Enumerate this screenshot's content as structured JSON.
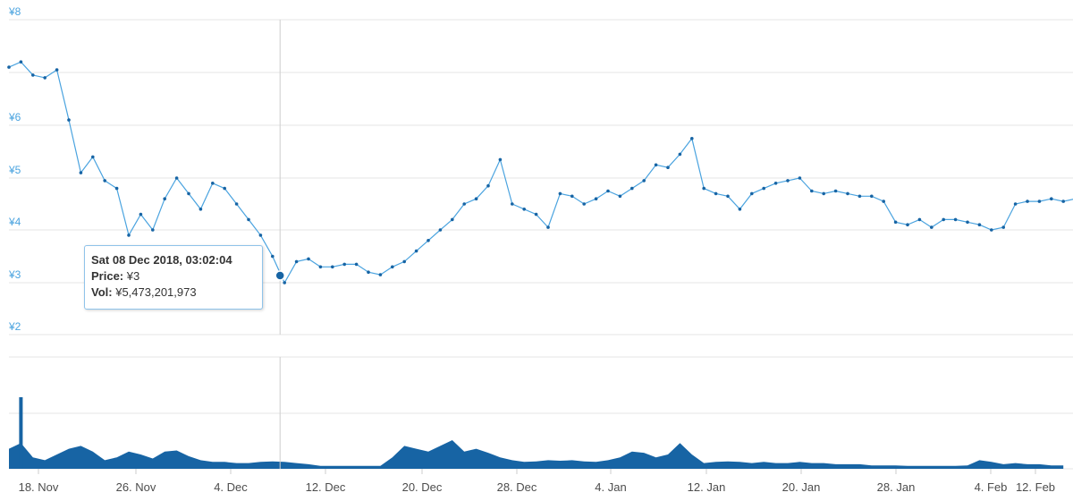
{
  "chart_data": {
    "type": "line",
    "price_axis": {
      "ticks": [
        "¥2",
        "¥3",
        "¥4",
        "¥5",
        "¥6",
        "¥8"
      ],
      "tick_values": [
        2,
        3,
        4,
        5,
        6,
        8
      ]
    },
    "x_ticks": [
      "18. Nov",
      "26. Nov",
      "4. Dec",
      "12. Dec",
      "20. Dec",
      "28. Dec",
      "4. Jan",
      "12. Jan",
      "20. Jan",
      "28. Jan",
      "4. Feb",
      "12. Feb"
    ],
    "price_series": {
      "color": "#1764a4",
      "points": [
        [
          "15 Nov",
          7.1
        ],
        [
          "16 Nov",
          7.2
        ],
        [
          "17 Nov",
          6.95
        ],
        [
          "18 Nov",
          6.9
        ],
        [
          "19 Nov",
          7.05
        ],
        [
          "20 Nov",
          6.1
        ],
        [
          "21 Nov",
          5.1
        ],
        [
          "22 Nov",
          5.4
        ],
        [
          "23 Nov",
          4.95
        ],
        [
          "24 Nov",
          4.8
        ],
        [
          "25 Nov",
          3.9
        ],
        [
          "26 Nov",
          4.3
        ],
        [
          "27 Nov",
          4.0
        ],
        [
          "28 Nov",
          4.6
        ],
        [
          "29 Nov",
          5.0
        ],
        [
          "30 Nov",
          4.7
        ],
        [
          "1 Dec",
          4.4
        ],
        [
          "2 Dec",
          4.9
        ],
        [
          "3 Dec",
          4.8
        ],
        [
          "4 Dec",
          4.5
        ],
        [
          "5 Dec",
          4.2
        ],
        [
          "6 Dec",
          3.9
        ],
        [
          "7 Dec",
          3.5
        ],
        [
          "8 Dec",
          3.0
        ],
        [
          "9 Dec",
          3.4
        ],
        [
          "10 Dec",
          3.45
        ],
        [
          "11 Dec",
          3.3
        ],
        [
          "12 Dec",
          3.3
        ],
        [
          "13 Dec",
          3.35
        ],
        [
          "14 Dec",
          3.35
        ],
        [
          "15 Dec",
          3.2
        ],
        [
          "16 Dec",
          3.15
        ],
        [
          "17 Dec",
          3.3
        ],
        [
          "18 Dec",
          3.4
        ],
        [
          "19 Dec",
          3.6
        ],
        [
          "20 Dec",
          3.8
        ],
        [
          "21 Dec",
          4.0
        ],
        [
          "22 Dec",
          4.2
        ],
        [
          "23 Dec",
          4.5
        ],
        [
          "24 Dec",
          4.6
        ],
        [
          "25 Dec",
          4.85
        ],
        [
          "26 Dec",
          5.35
        ],
        [
          "27 Dec",
          4.5
        ],
        [
          "28 Dec",
          4.4
        ],
        [
          "29 Dec",
          4.3
        ],
        [
          "30 Dec",
          4.05
        ],
        [
          "31 Dec",
          4.7
        ],
        [
          "1 Jan",
          4.65
        ],
        [
          "2 Jan",
          4.5
        ],
        [
          "3 Jan",
          4.6
        ],
        [
          "4 Jan",
          4.75
        ],
        [
          "5 Jan",
          4.65
        ],
        [
          "6 Jan",
          4.8
        ],
        [
          "7 Jan",
          4.95
        ],
        [
          "8 Jan",
          5.25
        ],
        [
          "9 Jan",
          5.2
        ],
        [
          "10 Jan",
          5.45
        ],
        [
          "11 Jan",
          5.75
        ],
        [
          "12 Jan",
          4.8
        ],
        [
          "13 Jan",
          4.7
        ],
        [
          "14 Jan",
          4.65
        ],
        [
          "15 Jan",
          4.4
        ],
        [
          "16 Jan",
          4.7
        ],
        [
          "17 Jan",
          4.8
        ],
        [
          "18 Jan",
          4.9
        ],
        [
          "19 Jan",
          4.95
        ],
        [
          "20 Jan",
          5.0
        ],
        [
          "21 Jan",
          4.75
        ],
        [
          "22 Jan",
          4.7
        ],
        [
          "23 Jan",
          4.75
        ],
        [
          "24 Jan",
          4.7
        ],
        [
          "25 Jan",
          4.65
        ],
        [
          "26 Jan",
          4.65
        ],
        [
          "27 Jan",
          4.55
        ],
        [
          "28 Jan",
          4.15
        ],
        [
          "29 Jan",
          4.1
        ],
        [
          "30 Jan",
          4.2
        ],
        [
          "31 Jan",
          4.05
        ],
        [
          "1 Feb",
          4.2
        ],
        [
          "2 Feb",
          4.2
        ],
        [
          "3 Feb",
          4.15
        ],
        [
          "4 Feb",
          4.1
        ],
        [
          "5 Feb",
          4.0
        ],
        [
          "6 Feb",
          4.05
        ],
        [
          "7 Feb",
          4.5
        ],
        [
          "8 Feb",
          4.55
        ],
        [
          "9 Feb",
          4.55
        ],
        [
          "10 Feb",
          4.6
        ],
        [
          "11 Feb",
          4.55
        ],
        [
          "12 Feb",
          4.6
        ],
        [
          "13 Feb",
          4.65
        ]
      ]
    },
    "volume_series": {
      "color": "#1764a4",
      "relative_values": [
        0.35,
        0.45,
        0.2,
        0.15,
        0.25,
        0.35,
        0.4,
        0.3,
        0.15,
        0.2,
        0.3,
        0.25,
        0.18,
        0.3,
        0.32,
        0.22,
        0.15,
        0.12,
        0.12,
        0.1,
        0.1,
        0.12,
        0.13,
        0.12,
        0.1,
        0.08,
        0.05,
        0.05,
        0.05,
        0.05,
        0.05,
        0.05,
        0.2,
        0.4,
        0.35,
        0.3,
        0.4,
        0.5,
        0.3,
        0.35,
        0.28,
        0.2,
        0.15,
        0.12,
        0.13,
        0.15,
        0.14,
        0.15,
        0.13,
        0.12,
        0.15,
        0.2,
        0.3,
        0.28,
        0.2,
        0.25,
        0.45,
        0.25,
        0.1,
        0.12,
        0.13,
        0.12,
        0.1,
        0.12,
        0.1,
        0.1,
        0.12,
        0.1,
        0.1,
        0.08,
        0.08,
        0.08,
        0.06,
        0.06,
        0.06,
        0.05,
        0.05,
        0.05,
        0.05,
        0.05,
        0.06,
        0.15,
        0.12,
        0.08,
        0.1,
        0.08,
        0.08,
        0.06,
        0.06
      ],
      "spike": {
        "day": "16 Nov",
        "relative_value": 1.0
      }
    },
    "tooltip": {
      "date": "Sat 08 Dec 2018, 03:02:04",
      "price_label": "Price:",
      "price_value": "¥3",
      "vol_label": "Vol:",
      "vol_value": "¥5,473,201,973"
    }
  }
}
